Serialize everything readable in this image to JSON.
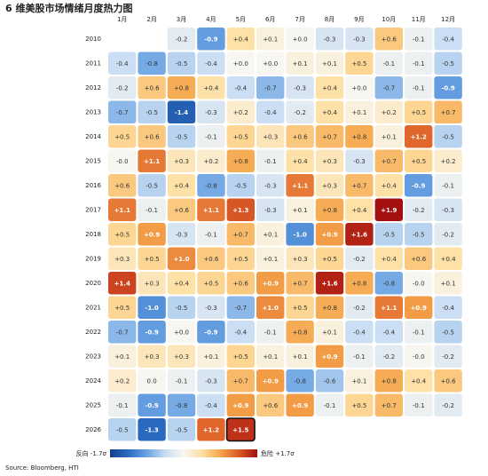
{
  "chart_data": {
    "type": "heatmap",
    "title": "6 维美股市场情绪月度热力图",
    "categories": [
      "1月",
      "2月",
      "3月",
      "4月",
      "5月",
      "6月",
      "7月",
      "8月",
      "9月",
      "10月",
      "11月",
      "12月"
    ],
    "series": [
      {
        "name": "2010",
        "values": [
          null,
          null,
          -0.2,
          -0.9,
          0.4,
          0.1,
          0.0,
          -0.3,
          -0.3,
          0.6,
          -0.1,
          -0.4
        ],
        "value_labels": [
          null,
          null,
          "-0.2",
          "-0.9",
          "+0.4",
          "+0.1",
          "+0.0",
          "-0.3",
          "-0.3",
          "+0.6",
          "-0.1",
          "-0.4"
        ]
      },
      {
        "name": "2011",
        "values": [
          -0.4,
          -0.8,
          -0.5,
          -0.4,
          0.0,
          0.0,
          0.1,
          0.1,
          0.5,
          -0.1,
          -0.1,
          -0.5
        ],
        "value_labels": [
          "-0.4",
          "-0.8",
          "-0.5",
          "-0.4",
          "+0.0",
          "+0.0",
          "+0.1",
          "+0.1",
          "+0.5",
          "-0.1",
          "-0.1",
          "-0.5"
        ]
      },
      {
        "name": "2012",
        "values": [
          -0.2,
          0.6,
          0.8,
          0.4,
          -0.4,
          -0.7,
          -0.3,
          0.4,
          0.0,
          -0.7,
          -0.1,
          -0.9
        ],
        "value_labels": [
          "-0.2",
          "+0.6",
          "+0.8",
          "+0.4",
          "-0.4",
          "-0.7",
          "-0.3",
          "+0.4",
          "+0.0",
          "-0.7",
          "-0.1",
          "-0.9"
        ]
      },
      {
        "name": "2013",
        "values": [
          -0.7,
          -0.5,
          -1.4,
          -0.3,
          0.2,
          -0.4,
          -0.2,
          0.4,
          0.1,
          0.2,
          0.5,
          0.7
        ],
        "value_labels": [
          "-0.7",
          "-0.5",
          "-1.4",
          "-0.3",
          "+0.2",
          "-0.4",
          "-0.2",
          "+0.4",
          "+0.1",
          "+0.2",
          "+0.5",
          "+0.7"
        ]
      },
      {
        "name": "2014",
        "values": [
          0.5,
          0.6,
          -0.5,
          -0.1,
          0.5,
          0.3,
          0.6,
          0.7,
          0.8,
          0.1,
          1.2,
          -0.5
        ],
        "value_labels": [
          "+0.5",
          "+0.6",
          "-0.5",
          "-0.1",
          "+0.5",
          "+0.3",
          "+0.6",
          "+0.7",
          "+0.8",
          "+0.1",
          "+1.2",
          "-0.5"
        ]
      },
      {
        "name": "2015",
        "values": [
          0.0,
          1.1,
          0.3,
          0.2,
          0.8,
          -0.1,
          0.4,
          0.3,
          -0.3,
          0.7,
          0.5,
          0.2
        ],
        "value_labels": [
          "-0.0",
          "+1.1",
          "+0.3",
          "+0.2",
          "+0.8",
          "-0.1",
          "+0.4",
          "+0.3",
          "-0.3",
          "+0.7",
          "+0.5",
          "+0.2"
        ]
      },
      {
        "name": "2016",
        "values": [
          0.6,
          -0.5,
          0.4,
          -0.8,
          -0.5,
          -0.3,
          1.1,
          0.3,
          0.7,
          0.4,
          -0.9,
          -0.1
        ],
        "value_labels": [
          "+0.6",
          "-0.5",
          "+0.4",
          "-0.8",
          "-0.5",
          "-0.3",
          "+1.1",
          "+0.3",
          "+0.7",
          "+0.4",
          "-0.9",
          "-0.1"
        ]
      },
      {
        "name": "2017",
        "values": [
          1.1,
          -0.1,
          0.6,
          1.1,
          1.3,
          -0.3,
          0.1,
          0.8,
          0.4,
          1.9,
          -0.2,
          -0.3
        ],
        "value_labels": [
          "+1.1",
          "-0.1",
          "+0.6",
          "+1.1",
          "+1.3",
          "-0.3",
          "+0.1",
          "+0.8",
          "+0.4",
          "+1.9",
          "-0.2",
          "-0.3"
        ]
      },
      {
        "name": "2018",
        "values": [
          0.5,
          0.9,
          -0.3,
          -0.1,
          0.7,
          0.1,
          -1.0,
          0.9,
          1.6,
          -0.5,
          -0.5,
          -0.2
        ],
        "value_labels": [
          "+0.5",
          "+0.9",
          "-0.3",
          "-0.1",
          "+0.7",
          "+0.1",
          "-1.0",
          "+0.9",
          "+1.6",
          "-0.5",
          "-0.5",
          "-0.2"
        ]
      },
      {
        "name": "2019",
        "values": [
          0.3,
          0.5,
          1.0,
          0.6,
          0.5,
          0.1,
          0.3,
          0.5,
          -0.2,
          0.4,
          0.6,
          0.4
        ],
        "value_labels": [
          "+0.3",
          "+0.5",
          "+1.0",
          "+0.6",
          "+0.5",
          "+0.1",
          "+0.3",
          "+0.5",
          "-0.2",
          "+0.4",
          "+0.6",
          "+0.4"
        ]
      },
      {
        "name": "2020",
        "values": [
          1.4,
          0.3,
          0.4,
          0.5,
          0.6,
          0.9,
          0.7,
          1.6,
          0.8,
          -0.8,
          0.0,
          0.1
        ],
        "value_labels": [
          "+1.4",
          "+0.3",
          "+0.4",
          "+0.5",
          "+0.6",
          "+0.9",
          "+0.7",
          "+1.6",
          "+0.8",
          "-0.8",
          "-0.0",
          "+0.1"
        ]
      },
      {
        "name": "2021",
        "values": [
          0.5,
          -1.0,
          -0.5,
          -0.3,
          -0.7,
          1.0,
          0.5,
          0.8,
          -0.2,
          1.1,
          0.9,
          -0.4
        ],
        "value_labels": [
          "+0.5",
          "-1.0",
          "-0.5",
          "-0.3",
          "-0.7",
          "+1.0",
          "+0.5",
          "+0.8",
          "-0.2",
          "+1.1",
          "+0.9",
          "-0.4"
        ]
      },
      {
        "name": "2022",
        "values": [
          -0.7,
          -0.9,
          0.0,
          -0.9,
          -0.4,
          -0.1,
          0.8,
          0.1,
          -0.4,
          -0.4,
          -0.1,
          -0.5
        ],
        "value_labels": [
          "-0.7",
          "-0.9",
          "+0.0",
          "-0.9",
          "-0.4",
          "-0.1",
          "+0.8",
          "+0.1",
          "-0.4",
          "-0.4",
          "-0.1",
          "-0.5"
        ]
      },
      {
        "name": "2023",
        "values": [
          0.1,
          0.3,
          0.3,
          0.1,
          0.5,
          0.1,
          0.1,
          0.9,
          -0.1,
          -0.2,
          0.0,
          -0.2
        ],
        "value_labels": [
          "+0.1",
          "+0.3",
          "+0.3",
          "+0.1",
          "+0.5",
          "+0.1",
          "+0.1",
          "+0.9",
          "-0.1",
          "-0.2",
          "-0.0",
          "-0.2"
        ]
      },
      {
        "name": "2024",
        "values": [
          0.2,
          0.0,
          -0.1,
          -0.3,
          0.7,
          0.9,
          -0.8,
          -0.6,
          0.1,
          0.8,
          0.4,
          0.6
        ],
        "value_labels": [
          "+0.2",
          "0.0",
          "-0.1",
          "-0.3",
          "+0.7",
          "+0.9",
          "-0.8",
          "-0.6",
          "+0.1",
          "+0.8",
          "+0.4",
          "+0.6"
        ]
      },
      {
        "name": "2025",
        "values": [
          -0.1,
          -0.9,
          -0.8,
          -0.4,
          0.9,
          0.6,
          0.9,
          -0.1,
          0.5,
          0.7,
          -0.1,
          -0.2
        ],
        "value_labels": [
          "-0.1",
          "-0.9",
          "-0.8",
          "-0.4",
          "+0.9",
          "+0.6",
          "+0.9",
          "-0.1",
          "+0.5",
          "+0.7",
          "-0.1",
          "-0.2"
        ]
      },
      {
        "name": "2026",
        "values": [
          -0.5,
          -1.3,
          -0.5,
          1.2,
          1.5,
          null,
          null,
          null,
          null,
          null,
          null,
          null
        ],
        "value_labels": [
          "-0.5",
          "-1.3",
          "-0.5",
          "+1.2",
          "+1.5",
          null,
          null,
          null,
          null,
          null,
          null,
          null
        ]
      }
    ],
    "clim": [
      -1.7,
      1.7
    ],
    "colors": [
      "#173f87",
      "#2b6cc4",
      "#6aa3e3",
      "#c9ddf3",
      "#f8f6f1",
      "#fde0a2",
      "#f5a54a",
      "#db5a26",
      "#a40f0f"
    ],
    "legend_labels": [
      "反向 -1.7σ",
      "危险 +1.7σ"
    ],
    "highlight_cell": [
      16,
      4
    ],
    "source": "Source: Bloomberg, HTI"
  }
}
